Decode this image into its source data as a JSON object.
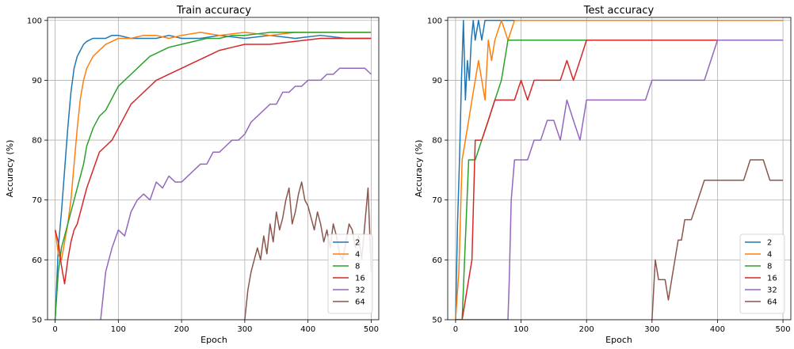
{
  "chart_data": [
    {
      "type": "line",
      "title": "Train accuracy",
      "xlabel": "Epoch",
      "ylabel": "Accuracy (%)",
      "xlim": [
        -12,
        512
      ],
      "ylim": [
        50,
        100.5
      ],
      "xticks": [
        0,
        100,
        200,
        300,
        400,
        500
      ],
      "yticks": [
        50,
        60,
        70,
        80,
        90,
        100
      ],
      "grid": true,
      "legend_position": "lower-right",
      "series": [
        {
          "name": "2",
          "color": "#1f77b4",
          "x": [
            0,
            5,
            10,
            15,
            20,
            25,
            30,
            35,
            40,
            45,
            50,
            60,
            70,
            80,
            90,
            100,
            120,
            140,
            160,
            180,
            200,
            230,
            260,
            300,
            340,
            380,
            420,
            460,
            500
          ],
          "y": [
            50,
            62,
            68,
            75,
            82,
            88,
            92,
            94,
            95,
            96,
            96.5,
            97,
            97,
            97,
            97.5,
            97.5,
            97,
            97,
            97,
            97.5,
            97,
            97,
            97.5,
            97,
            97.5,
            97,
            97.5,
            97,
            97
          ]
        },
        {
          "name": "4",
          "color": "#ff7f0e",
          "x": [
            0,
            5,
            10,
            15,
            20,
            25,
            30,
            35,
            40,
            45,
            50,
            60,
            70,
            80,
            90,
            100,
            120,
            140,
            160,
            180,
            200,
            230,
            260,
            300,
            340,
            380,
            420,
            460,
            500
          ],
          "y": [
            65,
            61,
            60,
            63,
            66,
            70,
            76,
            82,
            87,
            90,
            92,
            94,
            95,
            96,
            96.5,
            97,
            97,
            97.5,
            97.5,
            97,
            97.5,
            98,
            97.5,
            98,
            97.5,
            98,
            98,
            98,
            98
          ]
        },
        {
          "name": "8",
          "color": "#2ca02c",
          "x": [
            0,
            5,
            10,
            15,
            20,
            25,
            30,
            35,
            40,
            45,
            50,
            60,
            70,
            80,
            90,
            100,
            110,
            120,
            130,
            140,
            150,
            160,
            170,
            180,
            200,
            220,
            240,
            260,
            280,
            300,
            340,
            380,
            420,
            460,
            500
          ],
          "y": [
            50,
            58,
            62,
            64,
            66,
            68,
            70,
            72,
            74,
            76,
            79,
            82,
            84,
            85,
            87,
            89,
            90,
            91,
            92,
            93,
            94,
            94.5,
            95,
            95.5,
            96,
            96.5,
            97,
            97,
            97.5,
            97.5,
            98,
            98,
            98,
            98,
            98
          ]
        },
        {
          "name": "16",
          "color": "#d62728",
          "x": [
            0,
            5,
            10,
            15,
            20,
            25,
            30,
            35,
            40,
            50,
            60,
            70,
            80,
            90,
            100,
            110,
            120,
            130,
            140,
            150,
            160,
            170,
            180,
            200,
            220,
            240,
            260,
            280,
            300,
            340,
            380,
            420,
            460,
            500
          ],
          "y": [
            65,
            63,
            59,
            56,
            60,
            63,
            65,
            66,
            68,
            72,
            75,
            78,
            79,
            80,
            82,
            84,
            86,
            87,
            88,
            89,
            90,
            90.5,
            91,
            92,
            93,
            94,
            95,
            95.5,
            96,
            96,
            96.5,
            97,
            97,
            97
          ]
        },
        {
          "name": "32",
          "color": "#9467bd",
          "x": [
            0,
            10,
            20,
            30,
            40,
            50,
            60,
            70,
            80,
            90,
            100,
            110,
            120,
            130,
            140,
            150,
            160,
            170,
            180,
            190,
            200,
            210,
            220,
            230,
            240,
            250,
            260,
            270,
            280,
            290,
            300,
            310,
            320,
            330,
            340,
            350,
            360,
            370,
            380,
            390,
            400,
            410,
            420,
            430,
            440,
            450,
            460,
            470,
            480,
            490,
            500
          ],
          "y": [
            48,
            48,
            48,
            48,
            48,
            48,
            48,
            48,
            58,
            62,
            65,
            64,
            68,
            70,
            71,
            70,
            73,
            72,
            74,
            73,
            73,
            74,
            75,
            76,
            76,
            78,
            78,
            79,
            80,
            80,
            81,
            83,
            84,
            85,
            86,
            86,
            88,
            88,
            89,
            89,
            90,
            90,
            90,
            91,
            91,
            92,
            92,
            92,
            92,
            92,
            91
          ]
        },
        {
          "name": "64",
          "color": "#8c564b",
          "x": [
            300,
            305,
            310,
            315,
            320,
            325,
            330,
            335,
            340,
            345,
            350,
            355,
            360,
            365,
            370,
            375,
            380,
            385,
            390,
            395,
            400,
            405,
            410,
            415,
            420,
            425,
            430,
            435,
            440,
            445,
            450,
            455,
            460,
            465,
            470,
            475,
            480,
            485,
            490,
            495,
            500
          ],
          "y": [
            50,
            55,
            58,
            60,
            62,
            60,
            64,
            61,
            66,
            63,
            68,
            65,
            67,
            70,
            72,
            66,
            68,
            71,
            73,
            70,
            69,
            67,
            65,
            68,
            66,
            63,
            65,
            62,
            66,
            64,
            61,
            60,
            63,
            66,
            65,
            62,
            64,
            60,
            66,
            72,
            58
          ]
        }
      ]
    },
    {
      "type": "line",
      "title": "Test accuracy",
      "xlabel": "Epoch",
      "ylabel": "Accuracy (%)",
      "xlim": [
        -12,
        512
      ],
      "ylim": [
        50,
        100.5
      ],
      "xticks": [
        0,
        100,
        200,
        300,
        400,
        500
      ],
      "yticks": [
        50,
        60,
        70,
        80,
        90,
        100
      ],
      "grid": true,
      "legend_position": "lower-right",
      "series": [
        {
          "name": "2",
          "color": "#1f77b4",
          "x": [
            0,
            3,
            6,
            9,
            12,
            15,
            18,
            21,
            24,
            27,
            30,
            35,
            40,
            45,
            50,
            60,
            70,
            80,
            90,
            100,
            120,
            140,
            160,
            180,
            200,
            250,
            300,
            350,
            400,
            450,
            500
          ],
          "y": [
            50,
            66,
            76.7,
            90,
            100,
            86.7,
            93.3,
            90,
            96.7,
            100,
            96.7,
            100,
            96.7,
            100,
            100,
            100,
            100,
            100,
            100,
            100,
            100,
            100,
            100,
            100,
            100,
            100,
            100,
            100,
            100,
            100,
            100
          ]
        },
        {
          "name": "4",
          "color": "#ff7f0e",
          "x": [
            0,
            5,
            10,
            15,
            20,
            25,
            30,
            35,
            40,
            45,
            50,
            55,
            60,
            70,
            80,
            90,
            100,
            120,
            140,
            160,
            180,
            200,
            250,
            300,
            350,
            400,
            450,
            500
          ],
          "y": [
            50,
            58,
            76.7,
            80,
            83.3,
            86.7,
            90,
            93.3,
            90,
            86.7,
            96.7,
            93.3,
            96.7,
            100,
            96.7,
            100,
            100,
            100,
            100,
            100,
            100,
            100,
            100,
            100,
            100,
            100,
            100,
            100
          ]
        },
        {
          "name": "8",
          "color": "#2ca02c",
          "x": [
            0,
            10,
            20,
            30,
            40,
            50,
            60,
            70,
            80,
            90,
            100,
            120,
            150,
            200,
            250,
            300,
            350,
            400,
            450,
            500
          ],
          "y": [
            50,
            50,
            76.7,
            76.7,
            80,
            83.3,
            86.7,
            90,
            96.7,
            96.7,
            96.7,
            96.7,
            96.7,
            96.7,
            96.7,
            96.7,
            96.7,
            96.7,
            96.7,
            96.7
          ]
        },
        {
          "name": "16",
          "color": "#d62728",
          "x": [
            0,
            5,
            10,
            15,
            20,
            25,
            30,
            40,
            50,
            60,
            70,
            80,
            90,
            100,
            110,
            120,
            130,
            140,
            150,
            160,
            170,
            180,
            190,
            200,
            210,
            220,
            230,
            240,
            250,
            260,
            270,
            280,
            300,
            350,
            400,
            450,
            500
          ],
          "y": [
            50,
            50,
            50,
            53.3,
            56.7,
            60,
            80,
            80,
            83.3,
            86.7,
            86.7,
            86.7,
            86.7,
            90,
            86.7,
            90,
            90,
            90,
            90,
            90,
            93.3,
            90,
            93.3,
            96.7,
            96.7,
            96.7,
            96.7,
            96.7,
            96.7,
            96.7,
            96.7,
            96.7,
            96.7,
            96.7,
            96.7,
            96.7,
            96.7
          ]
        },
        {
          "name": "32",
          "color": "#9467bd",
          "x": [
            0,
            80,
            82,
            85,
            90,
            100,
            110,
            120,
            130,
            140,
            150,
            160,
            170,
            180,
            190,
            200,
            210,
            220,
            230,
            240,
            250,
            260,
            270,
            280,
            290,
            300,
            305,
            310,
            320,
            340,
            360,
            380,
            400,
            420,
            440,
            460,
            480,
            500
          ],
          "y": [
            50,
            50,
            56.7,
            70,
            76.7,
            76.7,
            76.7,
            80,
            80,
            83.3,
            83.3,
            80,
            86.7,
            83.3,
            80,
            86.7,
            86.7,
            86.7,
            86.7,
            86.7,
            86.7,
            86.7,
            86.7,
            86.7,
            86.7,
            90,
            90,
            90,
            90,
            90,
            90,
            90,
            96.7,
            96.7,
            96.7,
            96.7,
            96.7,
            96.7
          ]
        },
        {
          "name": "64",
          "color": "#8c564b",
          "x": [
            300,
            305,
            310,
            315,
            320,
            325,
            330,
            335,
            340,
            345,
            350,
            360,
            370,
            380,
            390,
            400,
            410,
            420,
            430,
            440,
            450,
            460,
            470,
            480,
            490,
            500
          ],
          "y": [
            50,
            60,
            56.7,
            56.7,
            56.7,
            53.3,
            56.7,
            60,
            63.3,
            63.3,
            66.7,
            66.7,
            70,
            73.3,
            73.3,
            73.3,
            73.3,
            73.3,
            73.3,
            73.3,
            76.7,
            76.7,
            76.7,
            73.3,
            73.3,
            73.3
          ]
        }
      ]
    }
  ]
}
